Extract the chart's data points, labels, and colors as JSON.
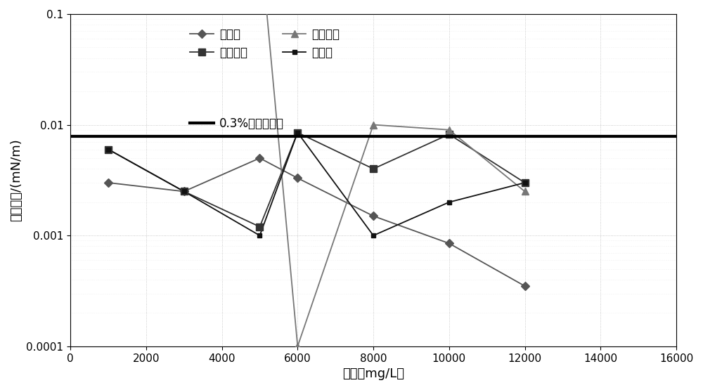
{
  "xlabel": "浓度（mg/L）",
  "ylabel": "界面张力/(mN/m)",
  "xlim": [
    0,
    16000
  ],
  "ylim_log": [
    0.0001,
    0.1
  ],
  "xticks": [
    0,
    2000,
    4000,
    6000,
    8000,
    10000,
    12000,
    14000,
    16000
  ],
  "background_color": "#ffffff",
  "surfactant_line_y": 0.0079,
  "surfactant_label": "0.3%表面活性剂",
  "series": [
    {
      "name": "乙醇胺",
      "x": [
        1000,
        3000,
        5000,
        6000,
        8000,
        10000,
        12000
      ],
      "y": [
        0.003,
        0.0025,
        0.005,
        0.0033,
        0.0015,
        0.00085,
        0.00035
      ],
      "color": "#555555",
      "marker": "D",
      "markersize": 6,
      "linewidth": 1.3
    },
    {
      "name": "二乙醇胺",
      "x": [
        1000,
        3000,
        5000,
        6000,
        8000,
        10000,
        12000
      ],
      "y": [
        0.006,
        0.0025,
        0.0012,
        0.0085,
        0.004,
        0.0082,
        0.003
      ],
      "color": "#333333",
      "marker": "s",
      "markersize": 7,
      "linewidth": 1.3
    },
    {
      "name": "三乙醇胺",
      "x": [
        1000,
        3000,
        5000,
        6000,
        8000,
        10000,
        12000
      ],
      "y": [
        0.5,
        0.5,
        0.5,
        0.0001,
        0.01,
        0.009,
        0.0025
      ],
      "color": "#777777",
      "marker": "^",
      "markersize": 7,
      "linewidth": 1.3,
      "clip": true
    },
    {
      "name": "碳酸钠",
      "x": [
        1000,
        3000,
        5000,
        6000,
        8000,
        10000,
        12000
      ],
      "y": [
        0.006,
        0.0025,
        0.001,
        0.0085,
        0.001,
        0.002,
        0.003
      ],
      "color": "#111111",
      "marker": "s",
      "markersize": 5,
      "linewidth": 1.3
    }
  ]
}
